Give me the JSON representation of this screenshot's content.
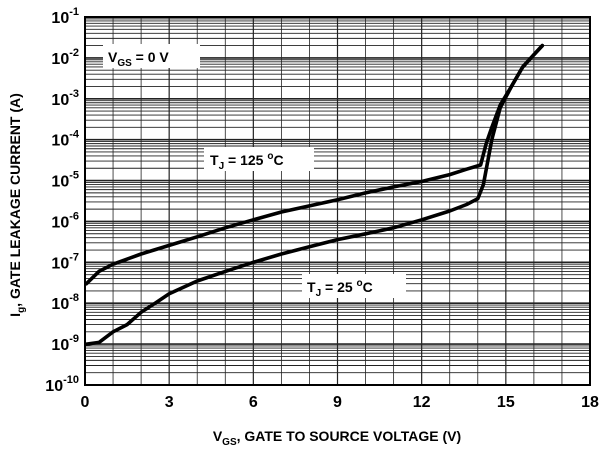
{
  "chart_data": {
    "type": "line",
    "title": "",
    "xlabel": {
      "main": "V",
      "sub": "GS",
      "rest": ", GATE TO SOURCE VOLTAGE (V)"
    },
    "ylabel": {
      "main": "I",
      "sub": "g",
      "rest": ", GATE LEAKAGE CURRENT (A)"
    },
    "x_scale": "linear",
    "y_scale": "log",
    "xlim": [
      0,
      18
    ],
    "ylim": [
      1e-10,
      0.1
    ],
    "x_ticks": [
      0,
      3,
      6,
      9,
      12,
      15,
      18
    ],
    "x_tick_labels": [
      "0",
      "3",
      "6",
      "9",
      "12",
      "15",
      "18"
    ],
    "y_ticks": [
      1e-10,
      1e-09,
      1e-08,
      1e-07,
      1e-06,
      1e-05,
      0.0001,
      0.001,
      0.01,
      0.1
    ],
    "y_tick_labels": [
      {
        "base": "10",
        "exp": "-10"
      },
      {
        "base": "10",
        "exp": "-9"
      },
      {
        "base": "10",
        "exp": "-8"
      },
      {
        "base": "10",
        "exp": "-7"
      },
      {
        "base": "10",
        "exp": "-6"
      },
      {
        "base": "10",
        "exp": "-5"
      },
      {
        "base": "10",
        "exp": "-4"
      },
      {
        "base": "10",
        "exp": "-3"
      },
      {
        "base": "10",
        "exp": "-2"
      },
      {
        "base": "10",
        "exp": "-1"
      }
    ],
    "grid": true,
    "series": [
      {
        "x": [
          0.05,
          0.5,
          1,
          2,
          3,
          4,
          5,
          6,
          7,
          8,
          9,
          10,
          11,
          12,
          13,
          13.6,
          14.1,
          14.3,
          14.5,
          14.8,
          15.2,
          15.6,
          16.0,
          16.3
        ],
        "y": [
          3e-08,
          6e-08,
          9e-08,
          1.6e-07,
          2.6e-07,
          4.2e-07,
          7e-07,
          1.1e-06,
          1.7e-06,
          2.4e-06,
          3.4e-06,
          5e-06,
          7e-06,
          9.5e-06,
          1.4e-05,
          1.9e-05,
          2.4e-05,
          8e-05,
          0.0002,
          0.0007,
          0.002,
          0.006,
          0.012,
          0.02
        ]
      },
      {
        "x": [
          0.05,
          0.5,
          1,
          1.5,
          2,
          2.5,
          3,
          4,
          5,
          6,
          7,
          8,
          9,
          10,
          11,
          12,
          13,
          13.6,
          14.0,
          14.2,
          14.5,
          14.8,
          15.2,
          15.6,
          16.0,
          16.3
        ],
        "y": [
          1e-09,
          1.1e-09,
          2e-09,
          3e-09,
          6e-09,
          1e-08,
          1.7e-08,
          3.5e-08,
          6e-08,
          1e-07,
          1.6e-07,
          2.4e-07,
          3.6e-07,
          5e-07,
          7e-07,
          1.1e-06,
          1.8e-06,
          2.6e-06,
          3.6e-06,
          8e-06,
          0.0001,
          0.0006,
          0.002,
          0.006,
          0.012,
          0.02
        ]
      }
    ],
    "annotations": [
      {
        "main": "V",
        "sub": "GS",
        "rest": " = 0 V"
      },
      {
        "main": "T",
        "sub": "J",
        "rest": " = 125 ",
        "sup": "o",
        "unit": "C"
      },
      {
        "main": "T",
        "sub": "J",
        "rest": " = 25 ",
        "sup": "o",
        "unit": "C"
      }
    ]
  }
}
